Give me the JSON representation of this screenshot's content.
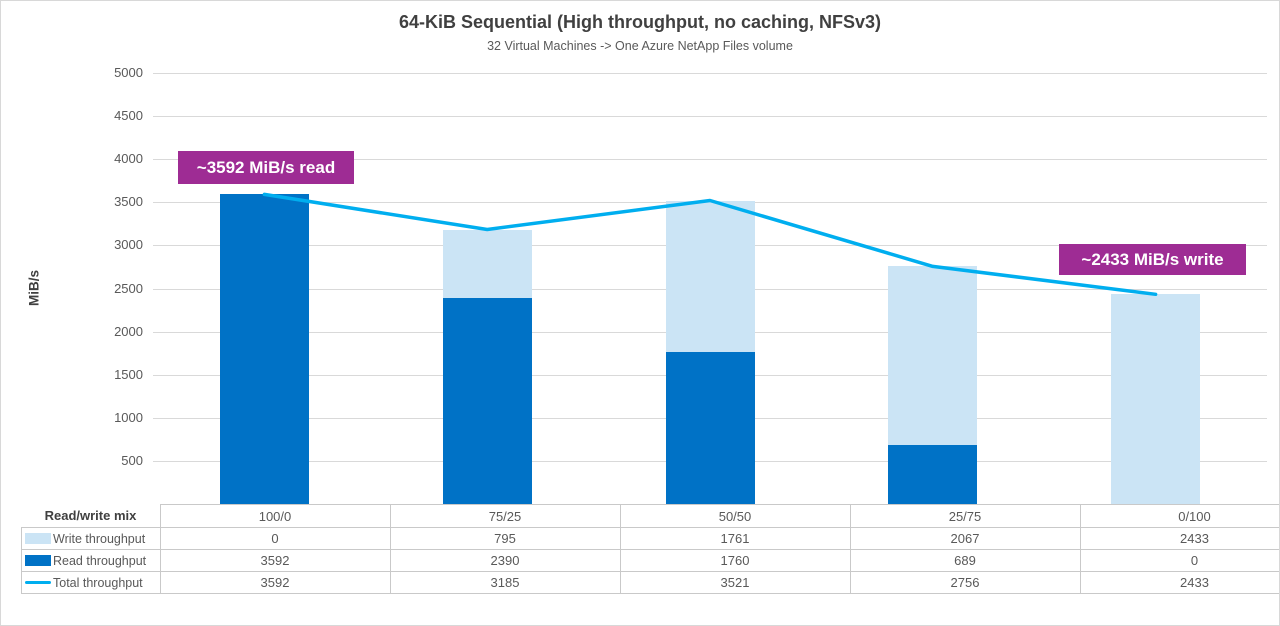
{
  "chart_data": {
    "type": "bar",
    "subtype": "stacked-bars-with-total-line",
    "title": "64-KiB Sequential (High throughput, no caching, NFSv3)",
    "subtitle": "32 Virtual Machines -> One Azure NetApp Files volume",
    "ylabel": "MiB/s",
    "ylim": [
      0,
      5000
    ],
    "yticks": [
      500,
      1000,
      1500,
      2000,
      2500,
      3000,
      3500,
      4000,
      4500,
      5000
    ],
    "grid": true,
    "legend_position": "table-left",
    "categories_label": "Read/write mix",
    "categories": [
      "100/0",
      "75/25",
      "50/50",
      "25/75",
      "0/100"
    ],
    "series": [
      {
        "name": "Write throughput",
        "kind": "bar",
        "stack_level": "top",
        "color": "#CBE4F5",
        "values": [
          0,
          795,
          1761,
          2067,
          2433
        ]
      },
      {
        "name": "Read throughput",
        "kind": "bar",
        "stack_level": "bottom",
        "color": "#0072C6",
        "values": [
          3592,
          2390,
          1760,
          689,
          0
        ]
      },
      {
        "name": "Total throughput",
        "kind": "line",
        "color": "#00AEEF",
        "values": [
          3592,
          3185,
          3521,
          2756,
          2433
        ]
      }
    ],
    "annotations": [
      {
        "text": "~3592 MiB/s read",
        "bg_color": "#9E2C94",
        "text_color": "#FFFFFF"
      },
      {
        "text": "~2433 MiB/s write",
        "bg_color": "#9E2C94",
        "text_color": "#FFFFFF"
      }
    ],
    "colors": {
      "title": "#404040",
      "axis_text": "#595959",
      "gridline": "#D9D9D9",
      "table_border": "#C9C9C9"
    }
  }
}
